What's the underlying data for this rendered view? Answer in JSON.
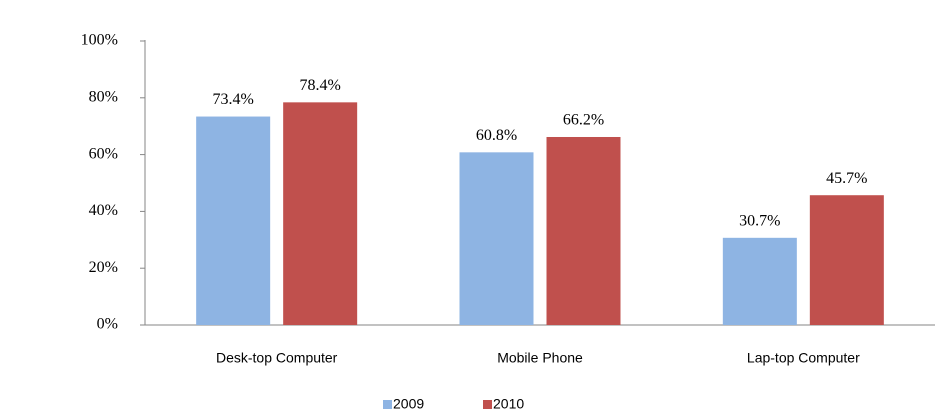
{
  "chart_data": {
    "type": "bar",
    "categories": [
      "Desk-top Computer",
      "Mobile Phone",
      "Lap-top Computer"
    ],
    "series": [
      {
        "name": "2009",
        "color": "#8eb4e3",
        "values": [
          73.4,
          60.8,
          30.7
        ],
        "value_labels": [
          "73.4%",
          "60.8%",
          "30.7%"
        ]
      },
      {
        "name": "2010",
        "color": "#c0504d",
        "values": [
          78.4,
          66.2,
          45.7
        ],
        "value_labels": [
          "78.4%",
          "66.2%",
          "45.7%"
        ]
      }
    ],
    "ylim": [
      0,
      100
    ],
    "yticks": [
      {
        "value": 0,
        "label": "0%"
      },
      {
        "value": 20,
        "label": "20%"
      },
      {
        "value": 40,
        "label": "40%"
      },
      {
        "value": 60,
        "label": "60%"
      },
      {
        "value": 80,
        "label": "80%"
      },
      {
        "value": 100,
        "label": "100%"
      }
    ],
    "grid": false,
    "legend": "bottom"
  }
}
